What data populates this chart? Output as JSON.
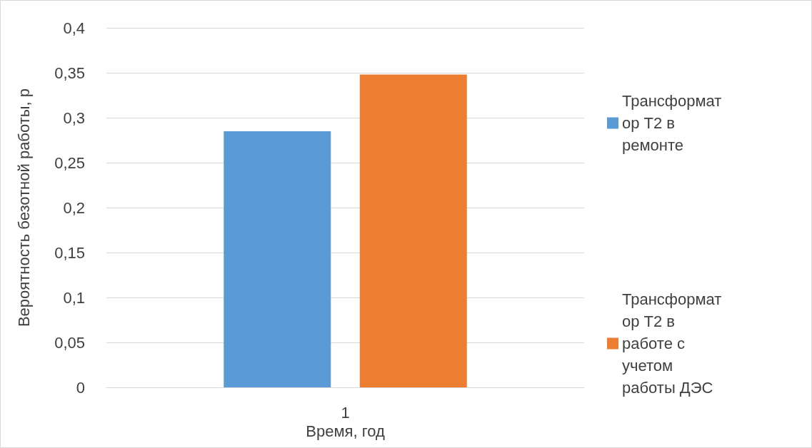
{
  "chart_data": {
    "type": "bar",
    "xlabel": "Время, год",
    "ylabel": "Вероятность безотной работы, р",
    "categories": [
      "1"
    ],
    "series": [
      {
        "name": "Трансформатор Т2 в ремонте",
        "color": "#5b9bd5",
        "values": [
          0.285
        ]
      },
      {
        "name": "Трансформатор Т2 в работе с учетом работы ДЭС",
        "color": "#ed7d31",
        "values": [
          0.348
        ]
      }
    ],
    "ylim": [
      0,
      0.4
    ],
    "yticks": [
      0,
      {
        "value": 0.05,
        "label": "0,05"
      },
      {
        "value": 0.1,
        "label": "0,1"
      },
      {
        "value": 0.15,
        "label": "0,15"
      },
      {
        "value": 0.2,
        "label": "0,2"
      },
      {
        "value": 0.25,
        "label": "0,25"
      },
      {
        "value": 0.3,
        "label": "0,3"
      },
      {
        "value": 0.35,
        "label": "0,35"
      },
      {
        "value": 0.4,
        "label": "0,4"
      }
    ],
    "grid": "y",
    "legend": "right"
  }
}
